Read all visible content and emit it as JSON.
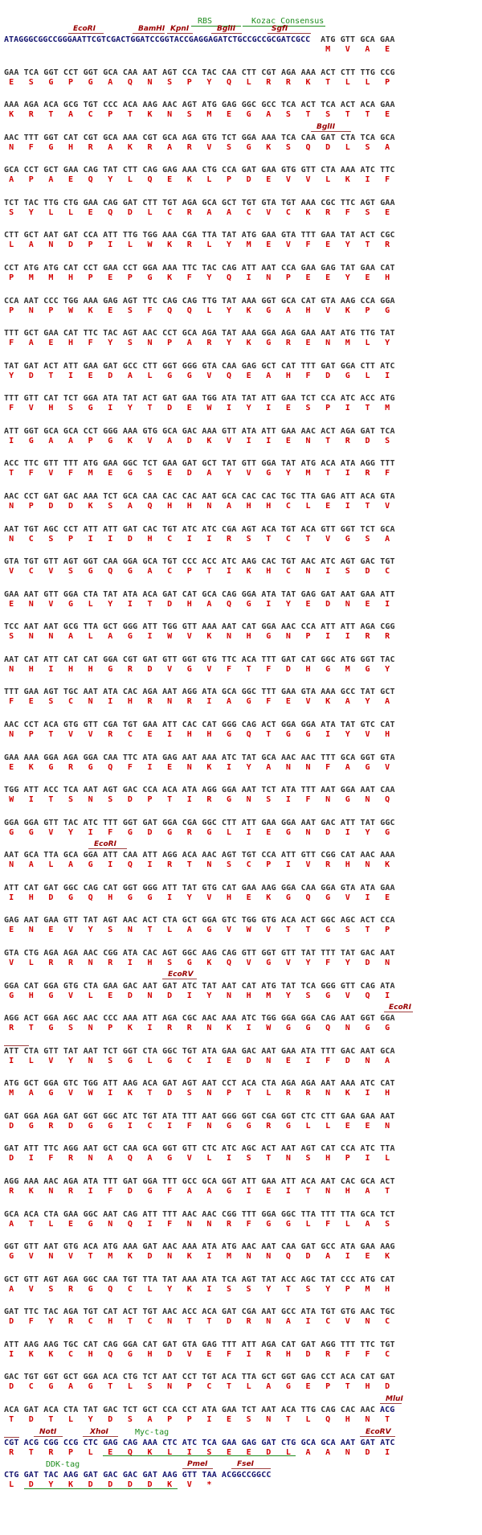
{
  "colors": {
    "orf_nt": "#333333",
    "vector_nt": "#14146e",
    "amino_acid": "#d40000",
    "enzyme": "#990000",
    "feature": "#1e8c1e"
  },
  "annotations": {
    "ecori_1": "EcoRI",
    "bamhi": "BamHI",
    "kpni": "KpnI",
    "rbs": "RBS",
    "bglii_1": "BglII",
    "kozac": "Kozac Consensus",
    "sgfi": "SgfI",
    "bglii_2": "BglII",
    "ecori_2": "EcoRI",
    "ecorv_1": "EcoRV",
    "ecori_3": "EcoRI",
    "mlui": "MluI",
    "noti": "NotI",
    "xhoi": "XhoI",
    "myc": "Myc-tag",
    "ecorv_2": "EcoRV",
    "ddk": "DDK-tag",
    "pmei": "PmeI",
    "fsei": "FseI"
  },
  "rows": [
    {
      "prefix": "ATAGGGCGGCCGGGAATTCGTCGACTGGATCCGGTACCGAGGAGATCTGCCGCCGCGATCGCC",
      "start": 16,
      "nt": "ATG GTT GCA GAA",
      "aa": "MVAE"
    },
    {
      "nt": "GAA TCA GGT CCT GGT GCA CAA AAT AGT CCA TAC CAA CTT CGT AGA AAA ACT CTT TTG CCG",
      "aa": "ESGPGAQNSPYQLRRKTLLP"
    },
    {
      "nt": "AAA AGA ACA GCG TGT CCC ACA AAG AAC AGT ATG GAG GGC GCC TCA ACT TCA ACT ACA GAA",
      "aa": "KRTACPTKNSMEGASTSTTE"
    },
    {
      "nt": "AAC TTT GGT CAT CGT GCA AAA CGT GCA AGA GTG TCT GGA AAA TCA CAA GAT CTA TCA GCA",
      "aa": "NFGHRAKRARVSGKSQDLSA"
    },
    {
      "nt": "GCA CCT GCT GAA CAG TAT CTT CAG GAG AAA CTG CCA GAT GAA GTG GTT CTA AAA ATC TTC",
      "aa": "APAEQYLQEKLPDEVVLKIF"
    },
    {
      "nt": "TCT TAC TTG CTG GAA CAG GAT CTT TGT AGA GCA GCT TGT GTA TGT AAA CGC TTC AGT GAA",
      "aa": "SYLLEQDLCRAACVCKRFSE"
    },
    {
      "nt": "CTT GCT AAT GAT CCA ATT TTG TGG AAA CGA TTA TAT ATG GAA GTA TTT GAA TAT ACT CGC",
      "aa": "LANDPILWKRLYMEVFEYTR"
    },
    {
      "nt": "CCT ATG ATG CAT CCT GAA CCT GGA AAA TTC TAC CAG ATT AAT CCA GAA GAG TAT GAA CAT",
      "aa": "PMMHPEPGKFYQINPEEYEH"
    },
    {
      "nt": "CCA AAT CCC TGG AAA GAG AGT TTC CAG CAG TTG TAT AAA GGT GCA CAT GTA AAG CCA GGA",
      "aa": "PNPWKESFQQLYKGAHVKPG"
    },
    {
      "nt": "TTT GCT GAA CAT TTC TAC AGT AAC CCT GCA AGA TAT AAA GGA AGA GAA AAT ATG TTG TAT",
      "aa": "FAEHFYSNPARYKGRENMLY"
    },
    {
      "nt": "TAT GAT ACT ATT GAA GAT GCC CTT GGT GGG GTA CAA GAG GCT CAT TTT GAT GGA CTT ATC",
      "aa": "YDTIEDALGGVQEAHFDGLI"
    },
    {
      "nt": "TTT GTT CAT TCT GGA ATA TAT ACT GAT GAA TGG ATA TAT ATT GAA TCT CCA ATC ACC ATG",
      "aa": "FVHSGIYTDEWIYIESPITM"
    },
    {
      "nt": "ATT GGT GCA GCA CCT GGG AAA GTG GCA GAC AAA GTT ATA ATT GAA AAC ACT AGA GAT TCA",
      "aa": "IGAAPGKVADKVIIENTRDS"
    },
    {
      "nt": "ACC TTC GTT TTT ATG GAA GGC TCT GAA GAT GCT TAT GTT GGA TAT ATG ACA ATA AGG TTT",
      "aa": "TFVFMEGSEDAYVGYMTIRF"
    },
    {
      "nt": "AAC CCT GAT GAC AAA TCT GCA CAA CAC CAC AAT GCA CAC CAC TGC TTA GAG ATT ACA GTA",
      "aa": "NPDDKSAQHHNAHHCLEITV"
    },
    {
      "nt": "AAT TGT AGC CCT ATT ATT GAT CAC TGT ATC ATC CGA AGT ACA TGT ACA GTT GGT TCT GCA",
      "aa": "NCSPIIDHCIIRSTCTVGSA"
    },
    {
      "nt": "GTA TGT GTT AGT GGT CAA GGA GCA TGT CCC ACC ATC AAG CAC TGT AAC ATC AGT GAC TGT",
      "aa": "VCVSGQGACPTIKHCNISDC"
    },
    {
      "nt": "GAA AAT GTT GGA CTA TAT ATA ACA GAT CAT GCA CAG GGA ATA TAT GAG GAT AAT GAA ATT",
      "aa": "ENVGLYITDHAQGIYEDNEI"
    },
    {
      "nt": "TCC AAT AAT GCG TTA GCT GGG ATT TGG GTT AAA AAT CAT GGA AAC CCA ATT ATT AGA CGG",
      "aa": "SNNALAGIWVKNHGNPIIRR"
    },
    {
      "nt": "AAT CAT ATT CAT CAT GGA CGT GAT GTT GGT GTG TTC ACA TTT GAT CAT GGC ATG GGT TAC",
      "aa": "NHIHHGRDVGVFTFDHGMGY"
    },
    {
      "nt": "TTT GAA AGT TGC AAT ATA CAC AGA AAT AGG ATA GCA GGC TTT GAA GTA AAA GCC TAT GCT",
      "aa": "FESCNIHRNRIAGFEVKAYA"
    },
    {
      "nt": "AAC CCT ACA GTG GTT CGA TGT GAA ATT CAC CAT GGG CAG ACT GGA GGA ATA TAT GTC CAT",
      "aa": "NPTVVRCEIHHGQTGGIYVH"
    },
    {
      "nt": "GAA AAA GGA AGA GGA CAA TTC ATA GAG AAT AAA ATC TAT GCA AAC AAC TTT GCA GGT GTA",
      "aa": "EKGRGQFIENKIYANNFAGV"
    },
    {
      "nt": "TGG ATT ACC TCA AAT AGT GAC CCA ACA ATA AGG GGA AAT TCT ATA TTT AAT GGA AAT CAA",
      "aa": "WITSNSDPTIRGNSIFNGNQ"
    },
    {
      "nt": "GGA GGA GTT TAC ATC TTT GGT GAT GGA CGA GGC CTT ATT GAA GGA AAT GAC ATT TAT GGC",
      "aa": "GGVYIFGDGRGLIEGNDIYG"
    },
    {
      "nt": "AAT GCA TTA GCA GGA ATT CAA ATT AGG ACA AAC AGT TGT CCA ATT GTT CGG CAT AAC AAA",
      "aa": "NALAGIQIRTNSCPIVRHNK"
    },
    {
      "nt": "ATT CAT GAT GGC CAG CAT GGT GGG ATT TAT GTG CAT GAA AAG GGA CAA GGA GTA ATA GAA",
      "aa": "IHDGQHGGIYVHEKGQGVIE"
    },
    {
      "nt": "GAG AAT GAA GTT TAT AGT AAC ACT CTA GCT GGA GTC TGG GTG ACA ACT GGC AGC ACT CCA",
      "aa": "ENEVYSNTLAGVWVTTGSTP"
    },
    {
      "nt": "GTA CTG AGA AGA AAC CGG ATA CAC AGT GGC AAG CAG GTT GGT GTT TAT TTT TAT GAC AAT",
      "aa": "VLRRNRIHSGKQVGVYFYDN"
    },
    {
      "nt": "GGA CAT GGA GTG CTA GAA GAC AAT GAT ATC TAT AAT CAT ATG TAT TCA GGG GTT CAG ATA",
      "aa": "GHGVLEDNDIYNHMYSGVQI"
    },
    {
      "nt": "AGG ACT GGA AGC AAC CCC AAA ATT AGA CGC AAC AAA ATC TGG GGA GGA CAG AAT GGT GGA",
      "aa": "RTGSNPKIRRNKIWGGQNGG"
    },
    {
      "nt": "ATT CTA GTT TAT AAT TCT GGT CTA GGC TGT ATA GAA GAC AAT GAA ATA TTT GAC AAT GCA",
      "aa": "ILVYNSGLGCIEDNEIFDNA"
    },
    {
      "nt": "ATG GCT GGA GTC TGG ATT AAG ACA GAT AGT AAT CCT ACA CTA AGA AGA AAT AAA ATC CAT",
      "aa": "MAGVWIKTDSNPTLRRNKIH"
    },
    {
      "nt": "GAT GGA AGA GAT GGT GGC ATC TGT ATA TTT AAT GGG GGT CGA GGT CTC CTT GAA GAA AAT",
      "aa": "DGRDGGICIFNGGRGLLEEN"
    },
    {
      "nt": "GAT ATT TTC AGG AAT GCT CAA GCA GGT GTT CTC ATC AGC ACT AAT AGT CAT CCA ATC TTA",
      "aa": "DIFRNAQAGVLISTNSHPIL"
    },
    {
      "nt": "AGG AAA AAC AGA ATA TTT GAT GGA TTT GCC GCA GGT ATT GAA ATT ACA AAT CAC GCA ACT",
      "aa": "RKNRIFDGFAAGIEITNHAT"
    },
    {
      "nt": "GCA ACA CTA GAA GGC AAT CAG ATT TTT AAC AAC CGG TTT GGA GGC TTA TTT TTA GCA TCT",
      "aa": "ATLEGNQIFNNRFGGLFLAS"
    },
    {
      "nt": "GGT GTT AAT GTG ACA ATG AAA GAT AAC AAA ATA ATG AAC AAT CAA GAT GCC ATA GAA AAG",
      "aa": "GVNVTMKDNKIMNNQDAIEK"
    },
    {
      "nt": "GCT GTT AGT AGA GGC CAA TGT TTA TAT AAA ATA TCA AGT TAT ACC AGC TAT CCC ATG CAT",
      "aa": "AVSRGQCLYKISSYTSYPMH"
    },
    {
      "nt": "GAT TTC TAC AGA TGT CAT ACT TGT AAC ACC ACA GAT CGA AAT GCC ATA TGT GTG AAC TGC",
      "aa": "DFYRCHTCNTTDRNAICVNC"
    },
    {
      "nt": "ATT AAG AAG TGC CAT CAG GGA CAT GAT GTA GAG TTT ATT AGA CAT GAT AGG TTT TTC TGT",
      "aa": "IKKCHQGHDVEFIRHDRFFC"
    },
    {
      "nt": "GAC TGT GGT GCT GGA ACA CTG TCT AAT CCT TGT ACA TTA GCT GGT GAG CCT ACA CAT GAT",
      "aa": "DCGAGTLSNPCTLAGEPTHD"
    },
    {
      "nt": "ACA GAT ACA CTA TAT GAC TCT GCT CCA CCT ATA GAA TCT AAT ACA TTG CAG CAC AAC",
      "tail": "ACG",
      "tail_start": 19,
      "aa": "TDTLYDSAPPIESNTLQHNT"
    },
    {
      "nt": "CGT ACG CGG CCG CTC GAG CAG AAA CTC ATC TCA GAA GAG GAT CTG GCA GCA AAT GAT ATC",
      "vector": true,
      "aa": "RTRPLEQKLISEEDLAANDI"
    },
    {
      "nt": "CTG GAT TAC AAG GAT GAC GAC GAT AAG GTT TAA",
      "vector": true,
      "tail": "ACGGCCGGCC",
      "tail_start": 11,
      "aa": "LDYKDDDDKV*"
    }
  ]
}
